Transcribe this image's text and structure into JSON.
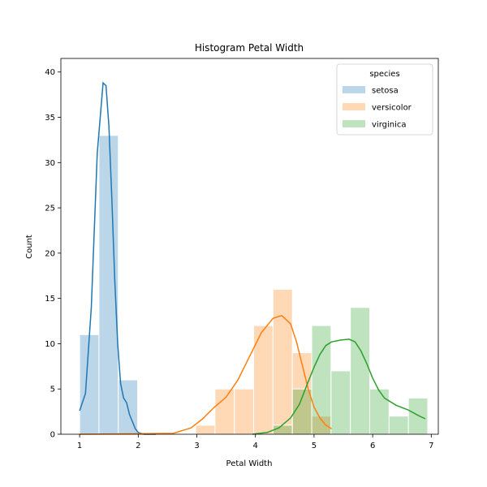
{
  "chart_data": {
    "type": "histogram",
    "title": "Histogram Petal Width",
    "xlabel": "Petal Width",
    "ylabel": "Count",
    "xlim": [
      0.68,
      7.12
    ],
    "ylim": [
      0,
      41.5
    ],
    "xticks": [
      1,
      2,
      3,
      4,
      5,
      6,
      7
    ],
    "yticks": [
      0,
      5,
      10,
      15,
      20,
      25,
      30,
      35,
      40
    ],
    "legend": {
      "title": "species",
      "placement": "top-right"
    },
    "bins": [
      {
        "x0": 1.0,
        "x1": 1.33
      },
      {
        "x0": 1.33,
        "x1": 1.66
      },
      {
        "x0": 1.66,
        "x1": 1.99
      },
      {
        "x0": 1.99,
        "x1": 2.32
      },
      {
        "x0": 2.32,
        "x1": 2.65
      },
      {
        "x0": 2.65,
        "x1": 2.98
      },
      {
        "x0": 2.98,
        "x1": 3.31
      },
      {
        "x0": 3.31,
        "x1": 3.64
      },
      {
        "x0": 3.64,
        "x1": 3.97
      },
      {
        "x0": 3.97,
        "x1": 4.3
      },
      {
        "x0": 4.3,
        "x1": 4.63
      },
      {
        "x0": 4.63,
        "x1": 4.96
      },
      {
        "x0": 4.96,
        "x1": 5.29
      },
      {
        "x0": 5.29,
        "x1": 5.62
      },
      {
        "x0": 5.62,
        "x1": 5.95
      },
      {
        "x0": 5.95,
        "x1": 6.28
      },
      {
        "x0": 6.28,
        "x1": 6.61
      },
      {
        "x0": 6.61,
        "x1": 6.94
      }
    ],
    "series": [
      {
        "name": "setosa",
        "color": "#1f77b4",
        "counts": [
          11,
          33,
          6,
          0,
          0,
          0,
          0,
          0,
          0,
          0,
          0,
          0,
          0,
          0,
          0,
          0,
          0,
          0
        ],
        "kde": [
          [
            1.0,
            2.6
          ],
          [
            1.1,
            4.5
          ],
          [
            1.2,
            14
          ],
          [
            1.3,
            31
          ],
          [
            1.4,
            38.8
          ],
          [
            1.45,
            38.5
          ],
          [
            1.5,
            34
          ],
          [
            1.55,
            26
          ],
          [
            1.6,
            17
          ],
          [
            1.65,
            10
          ],
          [
            1.7,
            5.6
          ],
          [
            1.75,
            4
          ],
          [
            1.8,
            3.5
          ],
          [
            1.85,
            2.2
          ],
          [
            1.9,
            1.4
          ],
          [
            1.95,
            0.6
          ],
          [
            2.0,
            0.2
          ],
          [
            2.1,
            0
          ],
          [
            2.3,
            0
          ]
        ]
      },
      {
        "name": "versicolor",
        "color": "#ff7f0e",
        "counts": [
          0,
          0,
          0,
          0,
          0,
          0,
          1,
          5,
          5,
          12,
          16,
          9,
          2,
          0,
          0,
          0,
          0,
          0
        ],
        "kde": [
          [
            1.0,
            0
          ],
          [
            2.6,
            0.1
          ],
          [
            2.9,
            0.7
          ],
          [
            3.1,
            1.7
          ],
          [
            3.3,
            3.0
          ],
          [
            3.5,
            4.1
          ],
          [
            3.7,
            6.0
          ],
          [
            3.9,
            8.6
          ],
          [
            4.1,
            11.2
          ],
          [
            4.3,
            12.8
          ],
          [
            4.45,
            13.1
          ],
          [
            4.6,
            12.2
          ],
          [
            4.7,
            10.2
          ],
          [
            4.8,
            7.6
          ],
          [
            4.9,
            5.0
          ],
          [
            5.0,
            3.0
          ],
          [
            5.1,
            1.8
          ],
          [
            5.2,
            1.0
          ],
          [
            5.3,
            0.6
          ]
        ]
      },
      {
        "name": "virginica",
        "color": "#2ca02c",
        "counts": [
          0,
          0,
          0,
          0,
          0,
          0,
          0,
          0,
          0,
          0,
          1,
          5,
          12,
          7,
          14,
          5,
          2,
          4
        ],
        "kde": [
          [
            3.95,
            0
          ],
          [
            4.2,
            0.2
          ],
          [
            4.4,
            0.7
          ],
          [
            4.6,
            1.8
          ],
          [
            4.75,
            3.3
          ],
          [
            4.9,
            5.8
          ],
          [
            5.0,
            7.4
          ],
          [
            5.1,
            8.8
          ],
          [
            5.2,
            9.8
          ],
          [
            5.3,
            10.2
          ],
          [
            5.45,
            10.4
          ],
          [
            5.6,
            10.5
          ],
          [
            5.7,
            10.2
          ],
          [
            5.8,
            9.2
          ],
          [
            5.9,
            7.8
          ],
          [
            6.0,
            6.2
          ],
          [
            6.1,
            4.9
          ],
          [
            6.2,
            4.0
          ],
          [
            6.4,
            3.2
          ],
          [
            6.6,
            2.7
          ],
          [
            6.8,
            2.0
          ],
          [
            6.9,
            1.7
          ]
        ]
      }
    ]
  }
}
